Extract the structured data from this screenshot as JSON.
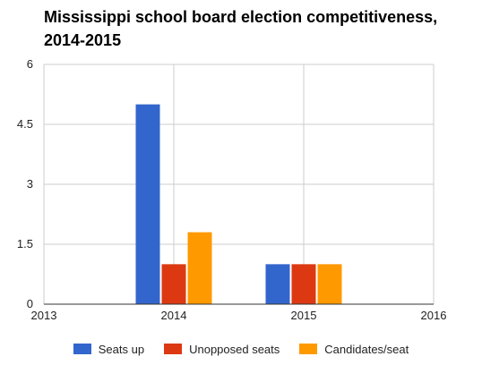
{
  "chart_data": {
    "type": "bar",
    "title": "Mississippi school board election competitiveness, 2014-2015",
    "xlabel": "",
    "ylabel": "",
    "x_ticks": [
      "2013",
      "2014",
      "2015",
      "2016"
    ],
    "y_ticks": [
      "0",
      "1.5",
      "3",
      "4.5",
      "6"
    ],
    "xlim": [
      2013,
      2016
    ],
    "ylim": [
      0,
      6
    ],
    "categories": [
      "2014",
      "2015"
    ],
    "grid": true,
    "legend_position": "bottom",
    "series": [
      {
        "name": "Seats up",
        "color": "#3366cc",
        "values": [
          5,
          1
        ]
      },
      {
        "name": "Unopposed seats",
        "color": "#dc3912",
        "values": [
          1,
          1
        ]
      },
      {
        "name": "Candidates/seat",
        "color": "#ff9900",
        "values": [
          1.8,
          1
        ]
      }
    ]
  }
}
